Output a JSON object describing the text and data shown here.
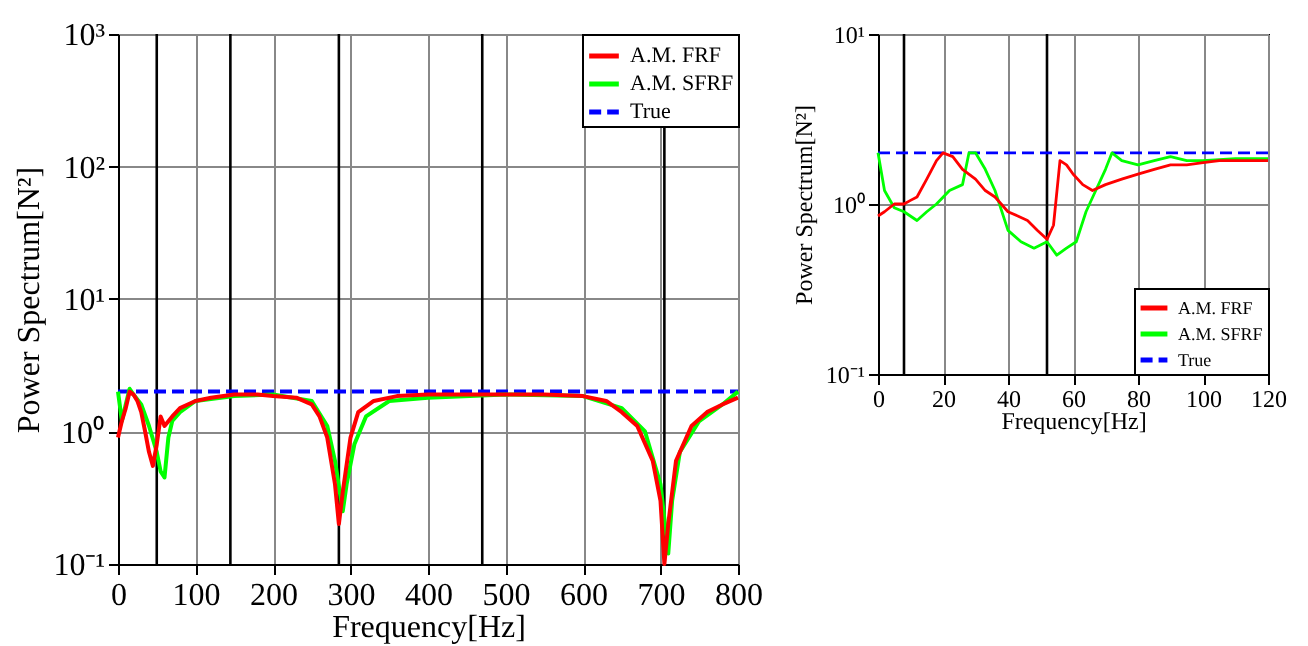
{
  "chart_data": [
    {
      "type": "line",
      "xlabel": "Frequency[Hz]",
      "ylabel": "Power Spectrum[N²]",
      "log": "y",
      "grid": true,
      "legend": "top right",
      "xlim": [
        0,
        800
      ],
      "xticks": [
        0,
        100,
        200,
        300,
        400,
        500,
        600,
        700,
        800
      ],
      "ylim": [
        0.1,
        1000
      ],
      "yticks": [
        {
          "value": 0.1,
          "label": "10⁻¹"
        },
        {
          "value": 1,
          "label": "10⁰"
        },
        {
          "value": 10,
          "label": "10¹"
        },
        {
          "value": 100,
          "label": "10²"
        },
        {
          "value": 1000,
          "label": "10³"
        }
      ],
      "series": [
        {
          "name": "A.M. FRF",
          "color": "#ff0000",
          "line_style": "solid",
          "x": [
            0,
            5,
            10,
            15,
            20,
            25,
            30,
            35,
            40,
            45,
            50,
            55,
            60,
            70,
            80,
            100,
            120,
            150,
            180,
            200,
            230,
            250,
            260,
            270,
            280,
            285,
            290,
            300,
            310,
            330,
            360,
            400,
            450,
            500,
            550,
            600,
            630,
            650,
            670,
            690,
            700,
            705,
            710,
            720,
            740,
            760,
            780,
            800
          ],
          "values": [
            0.9,
            1.2,
            1.5,
            2.0,
            1.9,
            1.7,
            1.4,
            1.0,
            0.7,
            0.55,
            0.8,
            1.3,
            1.1,
            1.3,
            1.5,
            1.7,
            1.8,
            1.9,
            1.9,
            1.85,
            1.8,
            1.6,
            1.3,
            0.9,
            0.4,
            0.2,
            0.35,
            0.9,
            1.4,
            1.7,
            1.85,
            1.9,
            1.9,
            1.9,
            1.9,
            1.85,
            1.7,
            1.4,
            1.1,
            0.6,
            0.3,
            0.1,
            0.2,
            0.6,
            1.1,
            1.4,
            1.6,
            1.8
          ]
        },
        {
          "name": "A.M. SFRF",
          "color": "#00ff00",
          "line_style": "solid",
          "x": [
            0,
            5,
            10,
            15,
            20,
            30,
            40,
            50,
            55,
            60,
            65,
            70,
            80,
            100,
            150,
            200,
            250,
            270,
            280,
            290,
            295,
            305,
            320,
            350,
            400,
            500,
            600,
            650,
            680,
            700,
            710,
            715,
            725,
            750,
            780,
            800
          ],
          "values": [
            2.0,
            1.2,
            1.6,
            2.1,
            1.9,
            1.6,
            1.1,
            0.7,
            0.5,
            0.45,
            0.9,
            1.2,
            1.4,
            1.7,
            1.85,
            1.9,
            1.7,
            1.1,
            0.6,
            0.25,
            0.4,
            0.8,
            1.3,
            1.7,
            1.8,
            1.9,
            1.85,
            1.5,
            1.0,
            0.4,
            0.12,
            0.3,
            0.7,
            1.2,
            1.6,
            2.0
          ]
        },
        {
          "name": "True",
          "color": "#0000ff",
          "line_style": "dashed",
          "x": [
            0,
            800
          ],
          "values": [
            2,
            2
          ]
        }
      ],
      "ref_lines": [
        {
          "axis": "x",
          "value": 50,
          "color": "#000000"
        },
        {
          "axis": "x",
          "value": 145,
          "color": "#000000"
        },
        {
          "axis": "x",
          "value": 285,
          "color": "#000000"
        },
        {
          "axis": "x",
          "value": 470,
          "color": "#000000"
        },
        {
          "axis": "x",
          "value": 705,
          "color": "#000000"
        }
      ]
    },
    {
      "type": "line",
      "xlabel": "Frequency[Hz]",
      "ylabel": "Power Spectrum[N²]",
      "log": "y",
      "grid": true,
      "legend": "bottom right",
      "xlim": [
        0,
        120
      ],
      "xticks": [
        0,
        20,
        40,
        60,
        80,
        100,
        120
      ],
      "ylim": [
        0.1,
        10
      ],
      "yticks": [
        {
          "value": 0.1,
          "label": "10⁻¹"
        },
        {
          "value": 1,
          "label": "10⁰"
        },
        {
          "value": 10,
          "label": "10¹"
        }
      ],
      "series": [
        {
          "name": "A.M. FRF",
          "color": "#ff0000",
          "line_style": "solid",
          "x": [
            0,
            2,
            5,
            8,
            10,
            12,
            15,
            18,
            20,
            23,
            26,
            30,
            33,
            36,
            40,
            43,
            46,
            49,
            52,
            54,
            56,
            58,
            60,
            63,
            66,
            70,
            75,
            80,
            85,
            90,
            95,
            100,
            105,
            110,
            115,
            120
          ],
          "values": [
            0.85,
            0.9,
            1.0,
            1.0,
            1.05,
            1.1,
            1.4,
            1.8,
            2.0,
            1.9,
            1.6,
            1.4,
            1.2,
            1.1,
            0.9,
            0.85,
            0.8,
            0.7,
            0.62,
            0.75,
            1.8,
            1.7,
            1.5,
            1.3,
            1.2,
            1.3,
            1.4,
            1.5,
            1.6,
            1.7,
            1.7,
            1.75,
            1.8,
            1.8,
            1.8,
            1.8
          ]
        },
        {
          "name": "A.M. SFRF",
          "color": "#00ff00",
          "line_style": "solid",
          "x": [
            0,
            2,
            5,
            8,
            12,
            15,
            18,
            22,
            26,
            28,
            30,
            33,
            36,
            40,
            44,
            48,
            52,
            55,
            58,
            61,
            64,
            67,
            70,
            72,
            75,
            80,
            85,
            90,
            95,
            100,
            110,
            120
          ],
          "values": [
            2.0,
            1.2,
            0.95,
            0.9,
            0.8,
            0.9,
            1.0,
            1.2,
            1.3,
            2.0,
            2.0,
            1.6,
            1.2,
            0.7,
            0.6,
            0.55,
            0.6,
            0.5,
            0.55,
            0.6,
            0.9,
            1.2,
            1.6,
            2.0,
            1.8,
            1.7,
            1.8,
            1.9,
            1.8,
            1.8,
            1.85,
            1.85
          ]
        },
        {
          "name": "True",
          "color": "#0000ff",
          "line_style": "dashed",
          "x": [
            0,
            120
          ],
          "values": [
            2,
            2
          ]
        }
      ],
      "ref_lines": [
        {
          "axis": "x",
          "value": 8,
          "color": "#000000"
        },
        {
          "axis": "x",
          "value": 52,
          "color": "#000000"
        }
      ]
    }
  ]
}
